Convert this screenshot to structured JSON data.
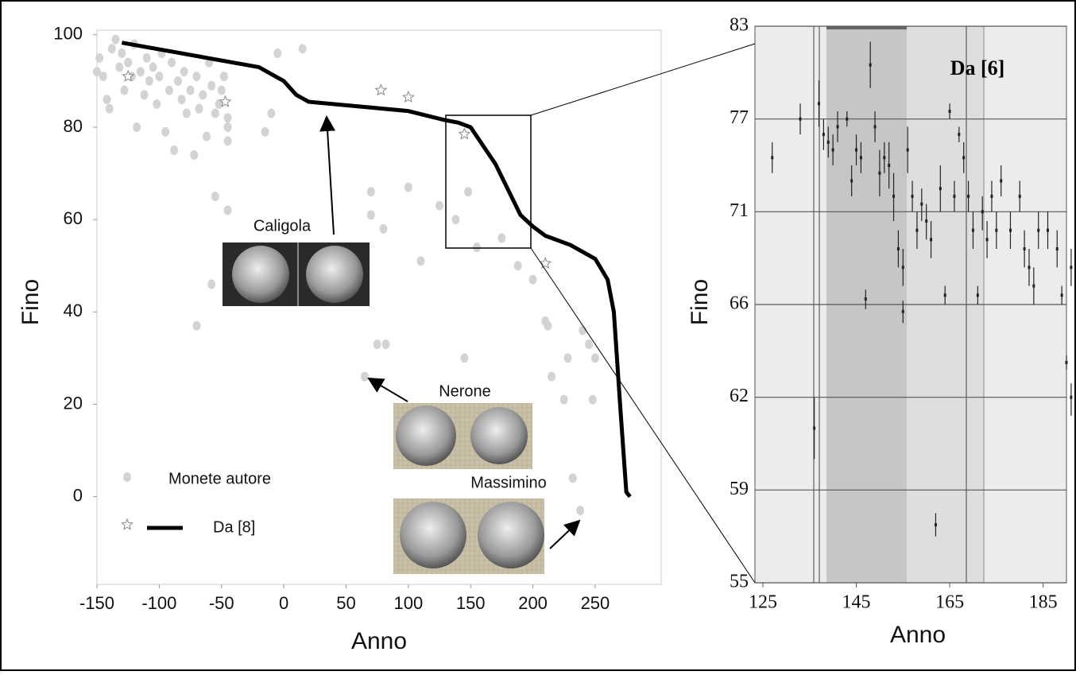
{
  "chart_data": [
    {
      "type": "scatter",
      "xlabel": "Anno",
      "ylabel": "Fino",
      "xlim": [
        -150,
        303
      ],
      "ylim": [
        -19,
        101
      ],
      "xticks": [
        -150,
        -100,
        -50,
        0,
        50,
        100,
        150,
        200,
        250
      ],
      "yticks": [
        0,
        20,
        40,
        60,
        80,
        100
      ],
      "annotations": [
        "Caligola",
        "Nerone",
        "Massimino"
      ],
      "series": [
        {
          "name": "Monete autore",
          "kind": "dots",
          "color": "#d3d3d3",
          "x": [
            -150,
            -148,
            -145,
            -142,
            -140,
            -138,
            -135,
            -132,
            -130,
            -128,
            -125,
            -122,
            -120,
            -118,
            -115,
            -112,
            -110,
            -108,
            -105,
            -102,
            -100,
            -98,
            -95,
            -92,
            -90,
            -88,
            -85,
            -82,
            -80,
            -78,
            -75,
            -72,
            -70,
            -68,
            -65,
            -62,
            -60,
            -58,
            -55,
            -52,
            -50,
            -48,
            -45,
            -45,
            -45,
            -15,
            -10,
            -5,
            15,
            -55,
            -45,
            -70,
            -58,
            70,
            70,
            80,
            100,
            110,
            125,
            138,
            148,
            155,
            175,
            188,
            200,
            210,
            212,
            215,
            225,
            228,
            240,
            245,
            250,
            248,
            145,
            75,
            82,
            65,
            232,
            238
          ],
          "values": [
            92,
            95,
            91,
            86,
            84,
            97,
            99,
            93,
            96,
            88,
            94,
            91,
            98,
            80,
            92,
            87,
            95,
            90,
            93,
            85,
            91,
            96,
            79,
            88,
            94,
            75,
            90,
            86,
            92,
            83,
            88,
            74,
            91,
            84,
            87,
            78,
            94,
            89,
            83,
            85,
            88,
            91,
            80,
            77,
            82,
            79,
            83,
            96,
            97,
            65,
            62,
            37,
            46,
            66,
            61,
            58,
            67,
            51,
            63,
            60,
            66,
            54,
            56,
            50,
            47,
            38,
            37,
            26,
            21,
            30,
            36,
            33,
            30,
            21,
            30,
            33,
            33,
            26,
            4,
            -3
          ]
        },
        {
          "name": "Da [8]",
          "kind": "line",
          "color": "#000000",
          "x": [
            -130,
            -20,
            0,
            10,
            20,
            100,
            130,
            140,
            150,
            160,
            170,
            180,
            190,
            200,
            210,
            230,
            250,
            260,
            265,
            270,
            275,
            278
          ],
          "values": [
            98.3,
            93,
            90,
            87,
            85.5,
            83.5,
            81.5,
            81,
            80,
            76,
            72,
            66.5,
            61,
            58.5,
            56.5,
            54.5,
            51.5,
            47,
            40,
            20,
            1,
            0
          ],
          "star_x": [
            -125,
            -47,
            78,
            100,
            145,
            210
          ],
          "star_values": [
            91,
            85.5,
            88,
            86.5,
            78.5,
            50.5
          ]
        }
      ]
    },
    {
      "type": "errorbar",
      "title": "Da [6]",
      "xlabel": "Anno",
      "ylabel": "Fino",
      "xlim": [
        123.3,
        190
      ],
      "ylim": [
        55,
        83
      ],
      "xticks": [
        125,
        145,
        165,
        185
      ],
      "yticks": [
        83,
        77,
        71,
        66,
        62,
        59,
        55
      ],
      "color": "#222222",
      "x": [
        127,
        133,
        136,
        137,
        138,
        139,
        140,
        141,
        143,
        144,
        145,
        146,
        147,
        148,
        149,
        150,
        151,
        152,
        153,
        154,
        155,
        155,
        156,
        157,
        158,
        159,
        160,
        161,
        162,
        163,
        164,
        165,
        166,
        167,
        168,
        169,
        170,
        171,
        172,
        173,
        174,
        175,
        176,
        178,
        180,
        181,
        182,
        183,
        184,
        186,
        188,
        189,
        190,
        191,
        191
      ],
      "values": [
        74.5,
        77,
        61,
        78,
        76,
        75.5,
        75,
        76.5,
        77,
        73,
        75,
        74.5,
        66.3,
        80.5,
        76.5,
        73.5,
        74.5,
        74,
        72,
        69,
        68,
        65.7,
        75,
        72,
        70,
        71.5,
        70.5,
        69.5,
        57.5,
        72.5,
        66.5,
        77.5,
        72,
        76,
        74.5,
        72,
        70,
        66.5,
        71,
        69.5,
        72,
        70,
        73,
        70,
        72,
        69,
        68,
        67,
        70,
        70,
        69,
        66.5,
        63.5,
        62,
        68
      ],
      "errors": [
        1,
        1,
        1,
        1.5,
        1,
        1,
        1,
        1,
        0.5,
        1,
        1,
        1,
        0.5,
        1.5,
        1,
        1.5,
        1,
        1.5,
        1.5,
        1,
        1,
        0.5,
        1.5,
        1,
        1,
        1,
        1,
        1,
        0.5,
        1.5,
        0.5,
        0.5,
        1,
        0.5,
        1,
        1,
        1,
        0.5,
        1,
        1,
        1,
        1,
        1,
        1,
        1,
        1,
        1,
        1,
        1,
        1,
        1,
        0.5,
        0.3,
        0.6,
        1
      ]
    }
  ]
}
